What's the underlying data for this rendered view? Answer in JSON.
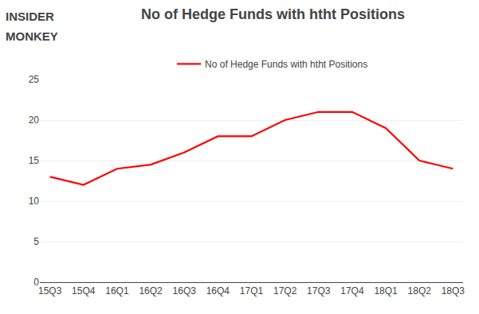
{
  "chart_data": {
    "type": "line",
    "title": "No of Hedge Funds with htht Positions",
    "categories": [
      "15Q3",
      "15Q4",
      "16Q1",
      "16Q2",
      "16Q3",
      "16Q4",
      "17Q1",
      "17Q2",
      "17Q3",
      "17Q4",
      "18Q1",
      "18Q2",
      "18Q3"
    ],
    "series": [
      {
        "name": "No of Hedge Funds with htht Positions",
        "color": "#ff0000",
        "values": [
          13,
          12,
          14,
          14.5,
          16,
          18,
          18,
          20,
          21,
          21,
          19,
          15,
          14
        ]
      }
    ],
    "ylim": [
      0,
      25
    ],
    "yticks": [
      0,
      5,
      10,
      15,
      20,
      25
    ],
    "grid": true,
    "legend": "top",
    "annotations": [
      "INSIDER",
      "MONKEY"
    ]
  }
}
